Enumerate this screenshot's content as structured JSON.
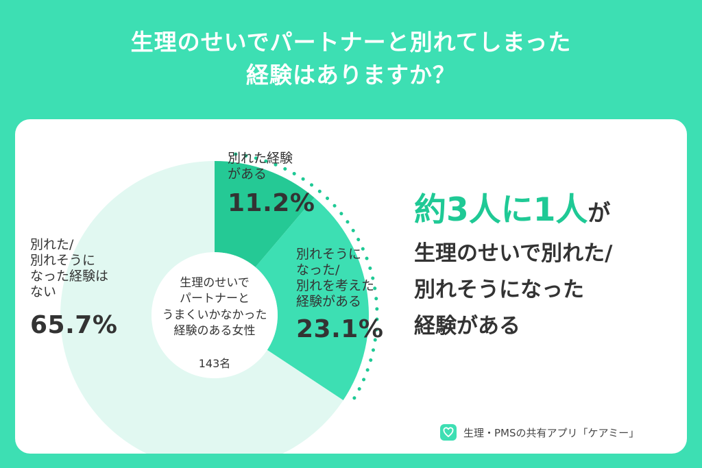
{
  "title": {
    "line1": "生理のせいでパートナーと別れてしまった",
    "line2": "経験はありますか？"
  },
  "chart_data": {
    "type": "pie",
    "donut": true,
    "categories": [
      "別れた経験がある",
      "別れそうになった/別れを考えた経験がある",
      "別れた/別れそうになった経験はない"
    ],
    "values": [
      11.2,
      23.1,
      65.7
    ],
    "colors": [
      "#25c995",
      "#3ddfb3",
      "#e1f8f1"
    ],
    "labels": [
      {
        "text": "別れた経験\nがある",
        "value": "11.2%"
      },
      {
        "text": "別れそうに\nなった/\n別れを考えた\n経験がある",
        "value": "23.1%"
      },
      {
        "text": "別れた/\n別れそうに\nなった経験は\nない",
        "value": "65.7%"
      }
    ],
    "center_label": "生理のせいで\nパートナーと\nうまくいかなかった\n経験のある女性",
    "center_count": "143名"
  },
  "headline": {
    "big1": "約3人に1人",
    "small1": "が",
    "sub": "生理のせいで別れた/\n別れそうになった\n経験がある"
  },
  "brand": {
    "text": "生理・PMSの共有アプリ「ケアミー」"
  },
  "colors": {
    "background": "#3ddfb3",
    "accent": "#1fc995",
    "pale": "#e1f8f1",
    "text": "#333333"
  }
}
